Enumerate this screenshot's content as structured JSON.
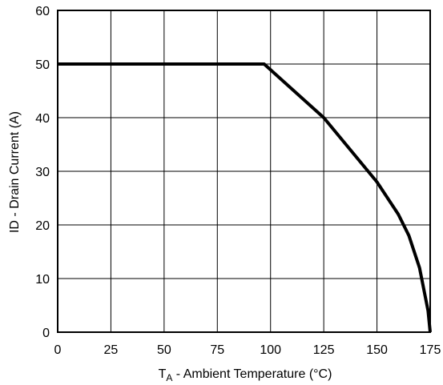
{
  "chart_data": {
    "type": "line",
    "title": "",
    "xlabel_main": "T",
    "xlabel_sub": "A",
    "xlabel_rest": " - Ambient Temperature (°C)",
    "ylabel": "ID - Drain Current (A)",
    "xlim": [
      0,
      175
    ],
    "ylim": [
      0,
      60
    ],
    "xticks": [
      0,
      25,
      50,
      75,
      100,
      125,
      150,
      175
    ],
    "yticks": [
      0,
      10,
      20,
      30,
      40,
      50,
      60
    ],
    "grid": true,
    "legend": "none",
    "series": [
      {
        "x": [
          0,
          97,
          125,
          150,
          160,
          165,
          170,
          172,
          174,
          175
        ],
        "y": [
          50,
          50,
          40,
          28,
          22,
          18,
          12,
          8,
          4,
          0
        ]
      }
    ]
  }
}
